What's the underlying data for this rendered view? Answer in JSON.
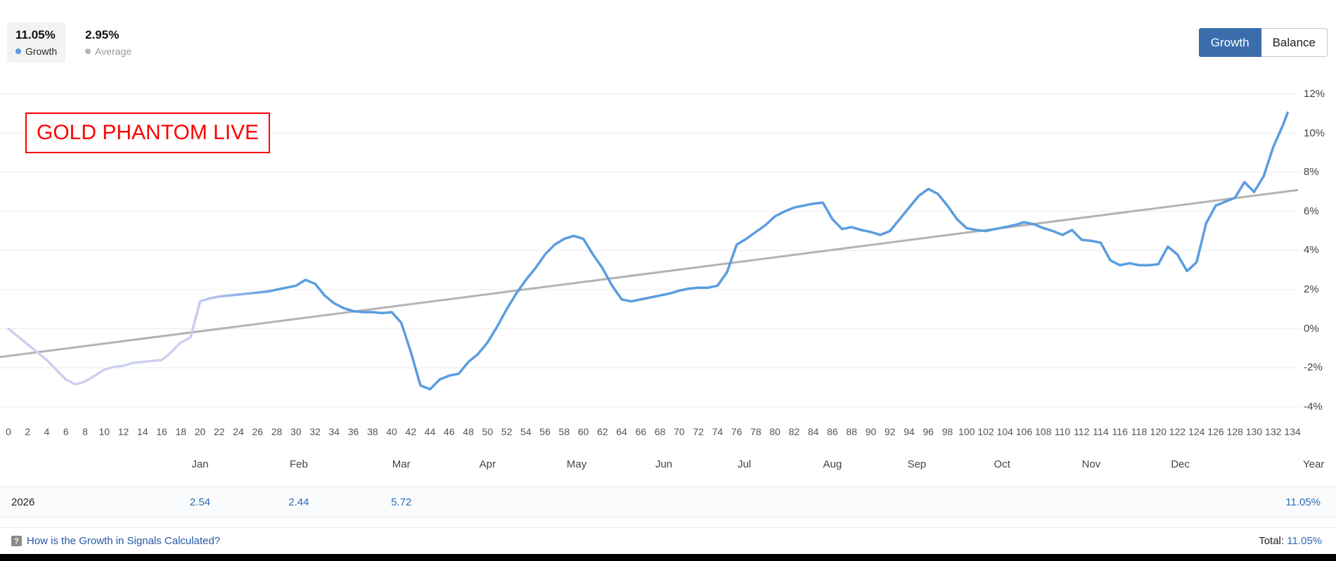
{
  "header": {
    "growth_value": "11.05%",
    "growth_label": "Growth",
    "average_value": "2.95%",
    "average_label": "Average"
  },
  "toggle": {
    "growth": "Growth",
    "balance": "Balance"
  },
  "colors": {
    "growth_line": "#5b9ce0",
    "growth_line_light": "#cdd1ee",
    "average_line": "#b3b3b3",
    "active_button": "#3b6cab",
    "link_blue": "#2458a6",
    "value_blue": "#2e6db5",
    "annotation_red": "#fe0000",
    "gridline": "#ebebeb"
  },
  "chart_data": {
    "type": "line",
    "title": "",
    "annotation": "GOLD PHANTOM LIVE",
    "grid": true,
    "legend_position": "top-left",
    "xlim": [
      0,
      134
    ],
    "ylim": [
      -4,
      12
    ],
    "year_label": "Year",
    "series": [
      {
        "name": "Growth",
        "color": "#5b9ce0",
        "light_color": "#cdd1ee",
        "points": [
          [
            0,
            0.0
          ],
          [
            1,
            -0.4
          ],
          [
            2,
            -0.8
          ],
          [
            3,
            -1.2
          ],
          [
            4,
            -1.6
          ],
          [
            5,
            -2.1
          ],
          [
            6,
            -2.6
          ],
          [
            7,
            -2.85
          ],
          [
            8,
            -2.7
          ],
          [
            9,
            -2.4
          ],
          [
            10,
            -2.1
          ],
          [
            11,
            -1.95
          ],
          [
            12,
            -1.9
          ],
          [
            13,
            -1.75
          ],
          [
            14,
            -1.7
          ],
          [
            15,
            -1.65
          ],
          [
            16,
            -1.6
          ],
          [
            17,
            -1.2
          ],
          [
            18,
            -0.7
          ],
          [
            19,
            -0.45
          ],
          [
            20,
            1.4
          ],
          [
            21,
            1.55
          ],
          [
            22,
            1.65
          ],
          [
            23,
            1.7
          ],
          [
            24,
            1.75
          ],
          [
            25,
            1.8
          ],
          [
            26,
            1.85
          ],
          [
            27,
            1.9
          ],
          [
            28,
            2.0
          ],
          [
            29,
            2.1
          ],
          [
            30,
            2.2
          ],
          [
            31,
            2.5
          ],
          [
            32,
            2.3
          ],
          [
            33,
            1.7
          ],
          [
            34,
            1.3
          ],
          [
            35,
            1.05
          ],
          [
            36,
            0.9
          ],
          [
            37,
            0.85
          ],
          [
            38,
            0.85
          ],
          [
            39,
            0.8
          ],
          [
            40,
            0.85
          ],
          [
            41,
            0.3
          ],
          [
            42,
            -1.2
          ],
          [
            43,
            -2.9
          ],
          [
            44,
            -3.1
          ],
          [
            45,
            -2.6
          ],
          [
            46,
            -2.4
          ],
          [
            47,
            -2.3
          ],
          [
            48,
            -1.7
          ],
          [
            49,
            -1.3
          ],
          [
            50,
            -0.7
          ],
          [
            51,
            0.1
          ],
          [
            52,
            1.0
          ],
          [
            53,
            1.8
          ],
          [
            54,
            2.5
          ],
          [
            55,
            3.1
          ],
          [
            56,
            3.8
          ],
          [
            57,
            4.3
          ],
          [
            58,
            4.6
          ],
          [
            59,
            4.75
          ],
          [
            60,
            4.6
          ],
          [
            61,
            3.8
          ],
          [
            62,
            3.1
          ],
          [
            63,
            2.2
          ],
          [
            64,
            1.5
          ],
          [
            65,
            1.4
          ],
          [
            66,
            1.5
          ],
          [
            67,
            1.6
          ],
          [
            68,
            1.7
          ],
          [
            69,
            1.8
          ],
          [
            70,
            1.95
          ],
          [
            71,
            2.05
          ],
          [
            72,
            2.1
          ],
          [
            73,
            2.1
          ],
          [
            74,
            2.2
          ],
          [
            75,
            2.9
          ],
          [
            76,
            4.3
          ],
          [
            77,
            4.6
          ],
          [
            78,
            4.95
          ],
          [
            79,
            5.3
          ],
          [
            80,
            5.75
          ],
          [
            81,
            6.0
          ],
          [
            82,
            6.2
          ],
          [
            83,
            6.3
          ],
          [
            84,
            6.4
          ],
          [
            85,
            6.45
          ],
          [
            86,
            5.6
          ],
          [
            87,
            5.1
          ],
          [
            88,
            5.2
          ],
          [
            89,
            5.05
          ],
          [
            90,
            4.95
          ],
          [
            91,
            4.8
          ],
          [
            92,
            5.0
          ],
          [
            93,
            5.6
          ],
          [
            94,
            6.2
          ],
          [
            95,
            6.8
          ],
          [
            96,
            7.15
          ],
          [
            97,
            6.9
          ],
          [
            98,
            6.3
          ],
          [
            99,
            5.6
          ],
          [
            100,
            5.15
          ],
          [
            101,
            5.05
          ],
          [
            102,
            5.0
          ],
          [
            103,
            5.1
          ],
          [
            104,
            5.2
          ],
          [
            105,
            5.3
          ],
          [
            106,
            5.45
          ],
          [
            107,
            5.35
          ],
          [
            108,
            5.15
          ],
          [
            109,
            5.0
          ],
          [
            110,
            4.8
          ],
          [
            111,
            5.05
          ],
          [
            112,
            4.55
          ],
          [
            113,
            4.5
          ],
          [
            114,
            4.4
          ],
          [
            115,
            3.5
          ],
          [
            116,
            3.25
          ],
          [
            117,
            3.35
          ],
          [
            118,
            3.25
          ],
          [
            119,
            3.25
          ],
          [
            120,
            3.3
          ],
          [
            121,
            4.2
          ],
          [
            122,
            3.8
          ],
          [
            123,
            2.95
          ],
          [
            124,
            3.4
          ],
          [
            125,
            5.4
          ],
          [
            126,
            6.3
          ],
          [
            127,
            6.5
          ],
          [
            128,
            6.7
          ],
          [
            129,
            7.5
          ],
          [
            130,
            7.0
          ],
          [
            131,
            7.8
          ],
          [
            132,
            9.3
          ],
          [
            133,
            10.4
          ],
          [
            133.5,
            11.05
          ]
        ]
      },
      {
        "name": "Average",
        "color": "#b3b3b3",
        "points": [
          [
            -0.9,
            -1.45
          ],
          [
            134.6,
            7.1
          ]
        ]
      }
    ],
    "y_ticks": [
      {
        "label": "12%",
        "value": 12
      },
      {
        "label": "10%",
        "value": 10
      },
      {
        "label": "8%",
        "value": 8
      },
      {
        "label": "6%",
        "value": 6
      },
      {
        "label": "4%",
        "value": 4
      },
      {
        "label": "2%",
        "value": 2
      },
      {
        "label": "0%",
        "value": 0
      },
      {
        "label": "-2%",
        "value": -2
      },
      {
        "label": "-4%",
        "value": -4
      }
    ],
    "x_ticks": [
      0,
      2,
      4,
      6,
      8,
      10,
      12,
      14,
      16,
      18,
      20,
      22,
      24,
      26,
      28,
      30,
      32,
      34,
      36,
      38,
      40,
      42,
      44,
      46,
      48,
      50,
      52,
      54,
      56,
      58,
      60,
      62,
      64,
      66,
      68,
      70,
      72,
      74,
      76,
      78,
      80,
      82,
      84,
      86,
      88,
      90,
      92,
      94,
      96,
      98,
      100,
      102,
      104,
      106,
      108,
      110,
      112,
      114,
      116,
      118,
      120,
      122,
      124,
      126,
      128,
      130,
      132,
      134
    ],
    "months": [
      {
        "label": "Jan",
        "x": 20
      },
      {
        "label": "Feb",
        "x": 30.3
      },
      {
        "label": "Mar",
        "x": 41
      },
      {
        "label": "Apr",
        "x": 50
      },
      {
        "label": "May",
        "x": 59.3
      },
      {
        "label": "Jun",
        "x": 68.4
      },
      {
        "label": "Jul",
        "x": 76.8
      },
      {
        "label": "Aug",
        "x": 86
      },
      {
        "label": "Sep",
        "x": 94.8
      },
      {
        "label": "Oct",
        "x": 103.7
      },
      {
        "label": "Nov",
        "x": 113
      },
      {
        "label": "Dec",
        "x": 122.3
      }
    ]
  },
  "table": {
    "year": "2026",
    "cells": [
      {
        "month": "Jan",
        "x": 20,
        "value": "2.54"
      },
      {
        "month": "Feb",
        "x": 30.3,
        "value": "2.44"
      },
      {
        "month": "Mar",
        "x": 41,
        "value": "5.72"
      }
    ],
    "year_total": "11.05%"
  },
  "footer": {
    "help_icon": "?",
    "help_text": "How is the Growth in Signals Calculated?",
    "total_label": "Total:",
    "total_value": "11.05%"
  }
}
